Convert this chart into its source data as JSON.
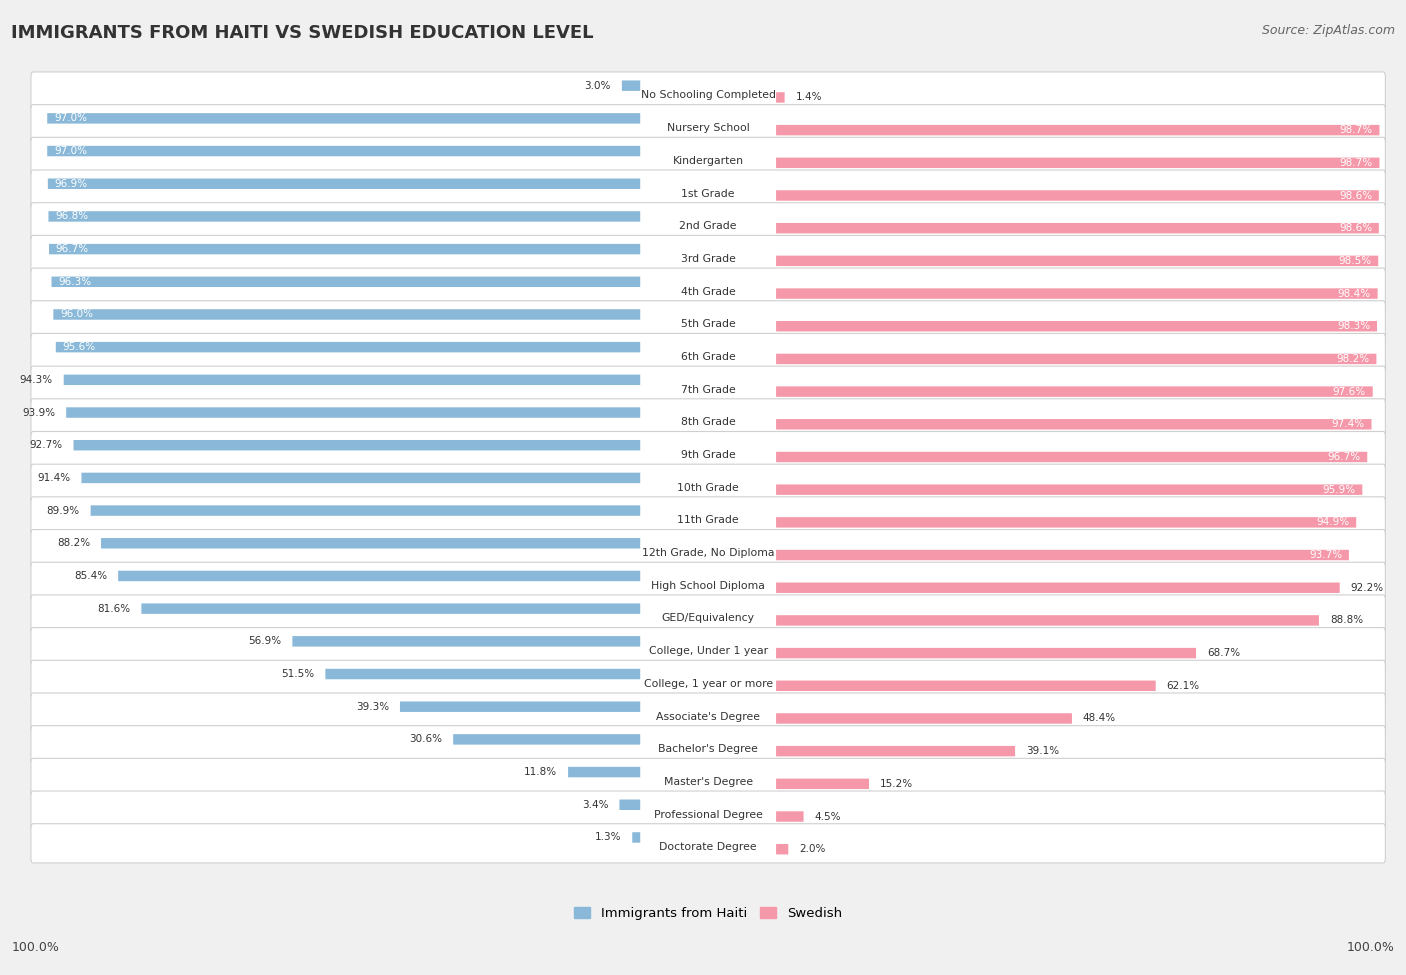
{
  "title": "IMMIGRANTS FROM HAITI VS SWEDISH EDUCATION LEVEL",
  "source": "Source: ZipAtlas.com",
  "categories": [
    "No Schooling Completed",
    "Nursery School",
    "Kindergarten",
    "1st Grade",
    "2nd Grade",
    "3rd Grade",
    "4th Grade",
    "5th Grade",
    "6th Grade",
    "7th Grade",
    "8th Grade",
    "9th Grade",
    "10th Grade",
    "11th Grade",
    "12th Grade, No Diploma",
    "High School Diploma",
    "GED/Equivalency",
    "College, Under 1 year",
    "College, 1 year or more",
    "Associate's Degree",
    "Bachelor's Degree",
    "Master's Degree",
    "Professional Degree",
    "Doctorate Degree"
  ],
  "haiti_values": [
    3.0,
    97.0,
    97.0,
    96.9,
    96.8,
    96.7,
    96.3,
    96.0,
    95.6,
    94.3,
    93.9,
    92.7,
    91.4,
    89.9,
    88.2,
    85.4,
    81.6,
    56.9,
    51.5,
    39.3,
    30.6,
    11.8,
    3.4,
    1.3
  ],
  "swedish_values": [
    1.4,
    98.7,
    98.7,
    98.6,
    98.6,
    98.5,
    98.4,
    98.3,
    98.2,
    97.6,
    97.4,
    96.7,
    95.9,
    94.9,
    93.7,
    92.2,
    88.8,
    68.7,
    62.1,
    48.4,
    39.1,
    15.2,
    4.5,
    2.0
  ],
  "haiti_color": "#89b8d8",
  "swedish_color": "#f599aa",
  "background_color": "#f0f0f0",
  "bar_bg_color": "#ffffff",
  "legend_haiti": "Immigrants from Haiti",
  "legend_swedish": "Swedish"
}
